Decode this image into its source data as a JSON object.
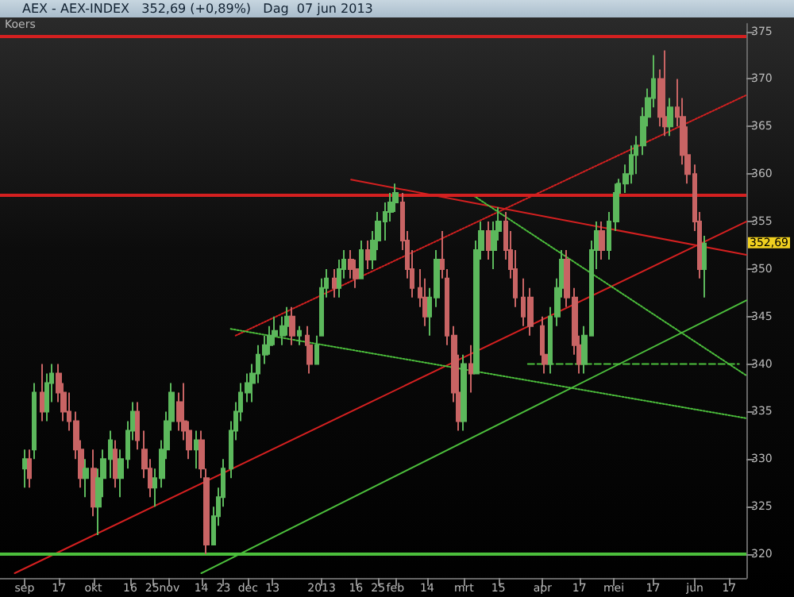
{
  "chart_data": {
    "type": "candlestick",
    "title": "AEX - AEX-INDEX   352,69 (+0,89%)   Dag  07 jun 2013",
    "annotations": [
      "Koers",
      "352,69"
    ],
    "xlim": [
      "2012-08-24",
      "2013-06-24"
    ],
    "ylim": [
      317.5,
      375.8
    ],
    "xticks": [
      {
        "value": "2012-09-03",
        "label": "sep"
      },
      {
        "value": "2012-09-17",
        "label": "17"
      },
      {
        "value": "2012-10-01",
        "label": "okt"
      },
      {
        "value": "2012-10-16",
        "label": "16"
      },
      {
        "value": "2012-10-25",
        "label": "25"
      },
      {
        "value": "2012-11-01",
        "label": "nov"
      },
      {
        "value": "2012-11-14",
        "label": "14"
      },
      {
        "value": "2012-11-23",
        "label": "23"
      },
      {
        "value": "2012-12-03",
        "label": "dec"
      },
      {
        "value": "2012-12-13",
        "label": "13"
      },
      {
        "value": "2013-01-02",
        "label": "2013"
      },
      {
        "value": "2013-01-16",
        "label": "16"
      },
      {
        "value": "2013-01-25",
        "label": "25"
      },
      {
        "value": "2013-02-01",
        "label": "feb"
      },
      {
        "value": "2013-02-14",
        "label": "14"
      },
      {
        "value": "2013-03-01",
        "label": "mrt"
      },
      {
        "value": "2013-03-15",
        "label": "15"
      },
      {
        "value": "2013-04-02",
        "label": "apr"
      },
      {
        "value": "2013-04-17",
        "label": "17"
      },
      {
        "value": "2013-05-01",
        "label": "mei"
      },
      {
        "value": "2013-05-17",
        "label": "17"
      },
      {
        "value": "2013-06-03",
        "label": "jun"
      },
      {
        "value": "2013-06-17",
        "label": "17"
      }
    ],
    "yticks": [
      320,
      325,
      330,
      335,
      340,
      345,
      350,
      355,
      360,
      365,
      370,
      375
    ],
    "ref_lines": [
      {
        "axis": "y",
        "value": 374.5,
        "color": "#d42020",
        "line_style": "solid"
      },
      {
        "axis": "y",
        "value": 357.8,
        "color": "#d42020",
        "line_style": "solid"
      },
      {
        "axis": "y",
        "value": 320,
        "color": "#4cbf3c",
        "line_style": "solid"
      }
    ],
    "series": [
      {
        "type": "candlestick",
        "x": [
          "2012-09-03",
          "2012-09-05",
          "2012-09-07",
          "2012-09-10",
          "2012-09-12",
          "2012-09-14",
          "2012-09-17",
          "2012-09-19",
          "2012-09-21",
          "2012-09-24",
          "2012-09-26",
          "2012-09-28",
          "2012-10-01",
          "2012-10-03",
          "2012-10-05",
          "2012-10-08",
          "2012-10-10",
          "2012-10-12",
          "2012-10-15",
          "2012-10-17",
          "2012-10-19",
          "2012-10-22",
          "2012-10-24",
          "2012-10-26",
          "2012-10-29",
          "2012-10-31",
          "2012-11-02",
          "2012-11-05",
          "2012-11-07",
          "2012-11-09",
          "2012-11-12",
          "2012-11-14",
          "2012-11-16",
          "2012-11-19",
          "2012-11-21",
          "2012-11-23",
          "2012-11-26",
          "2012-11-28",
          "2012-11-30",
          "2012-12-03",
          "2012-12-05",
          "2012-12-07",
          "2012-12-10",
          "2012-12-12",
          "2012-12-14",
          "2012-12-17",
          "2012-12-19",
          "2012-12-21",
          "2012-12-24",
          "2012-12-27",
          "2012-12-28",
          "2012-12-31",
          "2013-01-02",
          "2013-01-04",
          "2013-01-07",
          "2013-01-09",
          "2013-01-11",
          "2013-01-14",
          "2013-01-16",
          "2013-01-18",
          "2013-01-21",
          "2013-01-23",
          "2013-01-25",
          "2013-01-28",
          "2013-01-30",
          "2013-02-01",
          "2013-02-04",
          "2013-02-06",
          "2013-02-08",
          "2013-02-11",
          "2013-02-13",
          "2013-02-15",
          "2013-02-18",
          "2013-02-20",
          "2013-02-22",
          "2013-02-25",
          "2013-02-27",
          "2013-03-01",
          "2013-03-04",
          "2013-03-06",
          "2013-03-08",
          "2013-03-11",
          "2013-03-13",
          "2013-03-15",
          "2013-03-18",
          "2013-03-20",
          "2013-03-22",
          "2013-03-25",
          "2013-03-28",
          "2013-04-02",
          "2013-04-03",
          "2013-04-05",
          "2013-04-08",
          "2013-04-10",
          "2013-04-12",
          "2013-04-15",
          "2013-04-17",
          "2013-04-19",
          "2013-04-22",
          "2013-04-24",
          "2013-04-26",
          "2013-04-29",
          "2013-05-02",
          "2013-05-03",
          "2013-05-06",
          "2013-05-08",
          "2013-05-10",
          "2013-05-13",
          "2013-05-15",
          "2013-05-17",
          "2013-05-20",
          "2013-05-22",
          "2013-05-24",
          "2013-05-27",
          "2013-05-29",
          "2013-05-31",
          "2013-06-03",
          "2013-06-05",
          "2013-06-07"
        ],
        "ohlc": [
          [
            329,
            331,
            327,
            330
          ],
          [
            330,
            331,
            327,
            328
          ],
          [
            331,
            338,
            330,
            337
          ],
          [
            337,
            340,
            334,
            335
          ],
          [
            335,
            339,
            334,
            338
          ],
          [
            338,
            340,
            336,
            339
          ],
          [
            339,
            340,
            336,
            337
          ],
          [
            337,
            338,
            334,
            335
          ],
          [
            335,
            337,
            333,
            334
          ],
          [
            334,
            335,
            330,
            331
          ],
          [
            331,
            332,
            327,
            328
          ],
          [
            328,
            330,
            326,
            329
          ],
          [
            329,
            331,
            324,
            325
          ],
          [
            325,
            329,
            322,
            328
          ],
          [
            328,
            331,
            326,
            330
          ],
          [
            330,
            333,
            328,
            332
          ],
          [
            331,
            332,
            327,
            328
          ],
          [
            328,
            331,
            326,
            330
          ],
          [
            330,
            334,
            329,
            333
          ],
          [
            333,
            336,
            332,
            335
          ],
          [
            335,
            336,
            331,
            332
          ],
          [
            331,
            333,
            328,
            329
          ],
          [
            329,
            330,
            326,
            327
          ],
          [
            327,
            329,
            325,
            328
          ],
          [
            328,
            332,
            327,
            331
          ],
          [
            331,
            335,
            330,
            334
          ],
          [
            334,
            338,
            333,
            337
          ],
          [
            336,
            337,
            333,
            334
          ],
          [
            334,
            338,
            332,
            333
          ],
          [
            333,
            334,
            330,
            331
          ],
          [
            331,
            333,
            329,
            332
          ],
          [
            332,
            333,
            328,
            329
          ],
          [
            328,
            329,
            320,
            321
          ],
          [
            321,
            325,
            321,
            324
          ],
          [
            324,
            327,
            323,
            326
          ],
          [
            326,
            330,
            325,
            329
          ],
          [
            329,
            334,
            328,
            333
          ],
          [
            333,
            336,
            332,
            335
          ],
          [
            335,
            338,
            334,
            337
          ],
          [
            337,
            339,
            336,
            338
          ],
          [
            338,
            340,
            336,
            339
          ],
          [
            339,
            342,
            338,
            341
          ],
          [
            341,
            343,
            340,
            342
          ],
          [
            342,
            344,
            341,
            343
          ],
          [
            343,
            345,
            342,
            343.5
          ],
          [
            343,
            345,
            342,
            344
          ],
          [
            344,
            346,
            343,
            345
          ],
          [
            345,
            346,
            342,
            343
          ],
          [
            343,
            344,
            342,
            343.5
          ],
          [
            343,
            344,
            341,
            342
          ],
          [
            342,
            343,
            339,
            340
          ],
          [
            340,
            343,
            340,
            342
          ],
          [
            343,
            349,
            343,
            348
          ],
          [
            348,
            350,
            347,
            349
          ],
          [
            349,
            350,
            347,
            348
          ],
          [
            348,
            351,
            347,
            350
          ],
          [
            350,
            352,
            349,
            351
          ],
          [
            351,
            352,
            349,
            350
          ],
          [
            350,
            351,
            348,
            349
          ],
          [
            349,
            353,
            349,
            352
          ],
          [
            352,
            353,
            350,
            351
          ],
          [
            351,
            354,
            350,
            353
          ],
          [
            353,
            356,
            352,
            355
          ],
          [
            355,
            357,
            353,
            356
          ],
          [
            356,
            358,
            355,
            357
          ],
          [
            357,
            359,
            356,
            358
          ],
          [
            357,
            358,
            352,
            353
          ],
          [
            353,
            354,
            349,
            350
          ],
          [
            350,
            352,
            347,
            348
          ],
          [
            348,
            350,
            346,
            347
          ],
          [
            347,
            349,
            344,
            345
          ],
          [
            345,
            348,
            343,
            347
          ],
          [
            347,
            352,
            346,
            351
          ],
          [
            351,
            354,
            349,
            350
          ],
          [
            349,
            350,
            342,
            343
          ],
          [
            343,
            344,
            336,
            337
          ],
          [
            337,
            341,
            333,
            334
          ],
          [
            334,
            341,
            333,
            340
          ],
          [
            340,
            342,
            337,
            339
          ],
          [
            339,
            353,
            339,
            352
          ],
          [
            352,
            355,
            351,
            354
          ],
          [
            354,
            355,
            351,
            352
          ],
          [
            352,
            355,
            350,
            354
          ],
          [
            354,
            356.5,
            353,
            355
          ],
          [
            355,
            356,
            351,
            352
          ],
          [
            352,
            354,
            349,
            350
          ],
          [
            350,
            352,
            346,
            347
          ],
          [
            347,
            349,
            344,
            345
          ],
          [
            347,
            348,
            343,
            344
          ],
          [
            344,
            345,
            340,
            341
          ],
          [
            341,
            343,
            339,
            340
          ],
          [
            340,
            346,
            339,
            345
          ],
          [
            345,
            349,
            344,
            348
          ],
          [
            348,
            352,
            347,
            351
          ],
          [
            351,
            352,
            346,
            347
          ],
          [
            347,
            348,
            341,
            342
          ],
          [
            342,
            343,
            339,
            340
          ],
          [
            340,
            344,
            339,
            343
          ],
          [
            343,
            353,
            343,
            352
          ],
          [
            352,
            355,
            350,
            354
          ],
          [
            354,
            355,
            351,
            352
          ],
          [
            352,
            356,
            351,
            355
          ],
          [
            355,
            359,
            354,
            358
          ],
          [
            358,
            359.5,
            357,
            359
          ],
          [
            359,
            361,
            358,
            360
          ],
          [
            360,
            363,
            359,
            362
          ],
          [
            362,
            364,
            360,
            363
          ],
          [
            363,
            367,
            362,
            366
          ],
          [
            366,
            369,
            365,
            368
          ],
          [
            368,
            372.5,
            367,
            370
          ],
          [
            370,
            371,
            365,
            366
          ],
          [
            366,
            373,
            364,
            365
          ],
          [
            365,
            368,
            364,
            367
          ],
          [
            367,
            370,
            365,
            366
          ],
          [
            366,
            368,
            361,
            362
          ],
          [
            362,
            365,
            359,
            360
          ],
          [
            360,
            361,
            354,
            355
          ],
          [
            355,
            356,
            349,
            350
          ],
          [
            350,
            353.5,
            347,
            352.69
          ]
        ],
        "colors": [
          "#5cb85c",
          "#c86464",
          "#5cb85c",
          "#c86464",
          "#5cb85c",
          "#5cb85c",
          "#c86464",
          "#c86464",
          "#c86464",
          "#c86464",
          "#c86464",
          "#5cb85c",
          "#c86464",
          "#5cb85c",
          "#5cb85c",
          "#5cb85c",
          "#c86464",
          "#5cb85c",
          "#5cb85c",
          "#5cb85c",
          "#c86464",
          "#c86464",
          "#c86464",
          "#5cb85c",
          "#5cb85c",
          "#5cb85c",
          "#5cb85c",
          "#c86464",
          "#c86464",
          "#c86464",
          "#5cb85c",
          "#c86464",
          "#c86464",
          "#5cb85c",
          "#5cb85c",
          "#5cb85c",
          "#5cb85c",
          "#5cb85c",
          "#5cb85c",
          "#5cb85c",
          "#5cb85c",
          "#5cb85c",
          "#5cb85c",
          "#5cb85c",
          "#5cb85c",
          "#5cb85c",
          "#5cb85c",
          "#c86464",
          "#5cb85c",
          "#c86464",
          "#c86464",
          "#5cb85c",
          "#5cb85c",
          "#5cb85c",
          "#c86464",
          "#5cb85c",
          "#5cb85c",
          "#c86464",
          "#c86464",
          "#5cb85c",
          "#c86464",
          "#5cb85c",
          "#5cb85c",
          "#5cb85c",
          "#5cb85c",
          "#5cb85c",
          "#c86464",
          "#c86464",
          "#c86464",
          "#c86464",
          "#c86464",
          "#5cb85c",
          "#5cb85c",
          "#c86464",
          "#c86464",
          "#c86464",
          "#c86464",
          "#5cb85c",
          "#c86464",
          "#5cb85c",
          "#5cb85c",
          "#c86464",
          "#5cb85c",
          "#5cb85c",
          "#c86464",
          "#c86464",
          "#c86464",
          "#c86464",
          "#c86464",
          "#c86464",
          "#c86464",
          "#5cb85c",
          "#5cb85c",
          "#5cb85c",
          "#c86464",
          "#c86464",
          "#c86464",
          "#5cb85c",
          "#5cb85c",
          "#5cb85c",
          "#c86464",
          "#5cb85c",
          "#5cb85c",
          "#5cb85c",
          "#5cb85c",
          "#5cb85c",
          "#5cb85c",
          "#5cb85c",
          "#5cb85c",
          "#5cb85c",
          "#c86464",
          "#c86464",
          "#5cb85c",
          "#c86464",
          "#c86464",
          "#c86464",
          "#c86464",
          "#c86464",
          "#5cb85c"
        ]
      },
      {
        "type": "line",
        "color": "#d42020",
        "line_style": "solid",
        "x": [
          "2012-08-30",
          "2013-06-24"
        ],
        "values": [
          318,
          355
        ]
      },
      {
        "type": "line",
        "color": "#d42020",
        "line_style": "dotted",
        "x": [
          "2012-11-28",
          "2013-06-24"
        ],
        "values": [
          343,
          368.3
        ]
      },
      {
        "type": "line",
        "color": "#d42020",
        "line_style": "solid",
        "x": [
          "2013-01-14",
          "2013-06-24"
        ],
        "values": [
          359.4,
          351.5
        ]
      },
      {
        "type": "line",
        "color": "#4cbf3c",
        "line_style": "solid",
        "x": [
          "2012-11-14",
          "2013-06-24"
        ],
        "values": [
          318,
          346.7
        ]
      },
      {
        "type": "line",
        "color": "#4cbf3c",
        "line_style": "dotted",
        "x": [
          "2012-11-26",
          "2013-06-24"
        ],
        "values": [
          343.7,
          334.3
        ]
      },
      {
        "type": "line",
        "color": "#4cbf3c",
        "line_style": "dotted",
        "x": [
          "2013-03-05",
          "2013-06-24"
        ],
        "values": [
          357.7,
          338.8
        ]
      },
      {
        "type": "line",
        "color": "#4cbf3c",
        "line_style": "dashed",
        "x": [
          "2013-03-27",
          "2013-06-21"
        ],
        "values": [
          340,
          340
        ]
      }
    ]
  }
}
